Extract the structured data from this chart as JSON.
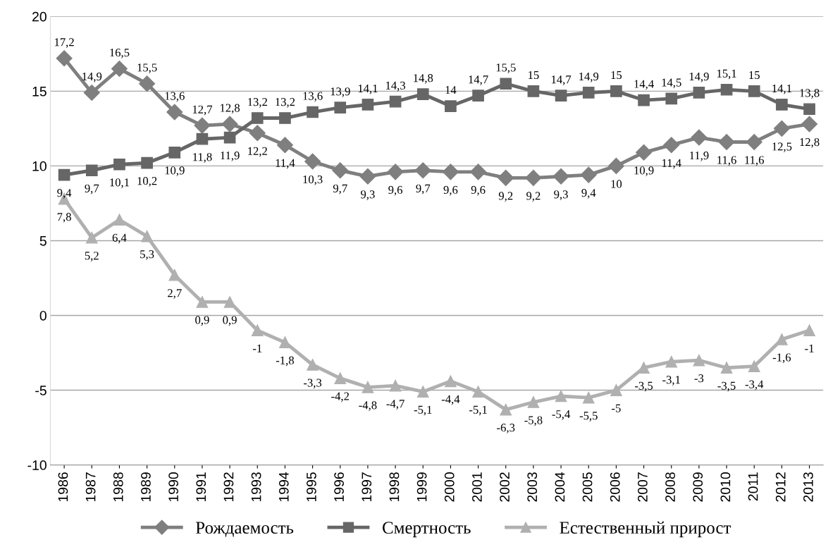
{
  "chart_data": {
    "type": "line",
    "categories": [
      "1986",
      "1987",
      "1988",
      "1989",
      "1990",
      "1991",
      "1992",
      "1993",
      "1994",
      "1995",
      "1996",
      "1997",
      "1998",
      "1999",
      "2000",
      "2001",
      "2002",
      "2003",
      "2004",
      "2005",
      "2006",
      "2007",
      "2008",
      "2009",
      "2010",
      "2011",
      "2012",
      "2013"
    ],
    "series": [
      {
        "name": "Рождаемость",
        "color": "#7f7f7f",
        "marker": "diamond",
        "values": [
          17.2,
          14.9,
          16.5,
          15.5,
          13.6,
          12.7,
          12.8,
          12.2,
          11.4,
          10.3,
          9.7,
          9.3,
          9.6,
          9.7,
          9.6,
          9.6,
          9.2,
          9.2,
          9.3,
          9.4,
          10,
          10.9,
          11.4,
          11.9,
          11.6,
          11.6,
          12.5,
          12.8
        ],
        "value_labels": [
          "17,2",
          "14,9",
          "16,5",
          "15,5",
          "13,6",
          "12,7",
          "12,8",
          "12,2",
          "11,4",
          "10,3",
          "9,7",
          "9,3",
          "9,6",
          "9,7",
          "9,6",
          "9,6",
          "9,2",
          "9,2",
          "9,3",
          "9,4",
          "10",
          "10,9",
          "11,4",
          "11,9",
          "11,6",
          "11,6",
          "12,5",
          "12,8"
        ]
      },
      {
        "name": "Смертность",
        "color": "#666666",
        "marker": "square",
        "values": [
          9.4,
          9.7,
          10.1,
          10.2,
          10.9,
          11.8,
          11.9,
          13.2,
          13.2,
          13.6,
          13.9,
          14.1,
          14.3,
          14.8,
          14,
          14.7,
          15.5,
          15,
          14.7,
          14.9,
          15,
          14.4,
          14.5,
          14.9,
          15.1,
          15,
          14.1,
          13.8
        ],
        "value_labels": [
          "9,4",
          "9,7",
          "10,1",
          "10,2",
          "10,9",
          "11,8",
          "11,9",
          "13,2",
          "13,2",
          "13,6",
          "13,9",
          "14,1",
          "14,3",
          "14,8",
          "14",
          "14,7",
          "15,5",
          "15",
          "14,7",
          "14,9",
          "15",
          "14,4",
          "14,5",
          "14,9",
          "15,1",
          "15",
          "14,1",
          "13,8"
        ]
      },
      {
        "name": "Естественный прирост",
        "color": "#b0b0b0",
        "marker": "triangle",
        "values": [
          7.8,
          5.2,
          6.4,
          5.3,
          2.7,
          0.9,
          0.9,
          -1,
          -1.8,
          -3.3,
          -4.2,
          -4.8,
          -4.7,
          -5.1,
          -4.4,
          -5.1,
          -6.3,
          -5.8,
          -5.4,
          -5.5,
          -5,
          -3.5,
          -3.1,
          -3,
          -3.5,
          -3.4,
          -1.6,
          -1
        ],
        "value_labels": [
          "7,8",
          "5,2",
          "6,4",
          "5,3",
          "2,7",
          "0,9",
          "0,9",
          "-1",
          "-1,8",
          "-3,3",
          "-4,2",
          "-4,8",
          "-4,7",
          "-5,1",
          "-4,4",
          "-5,1",
          "-6,3",
          "-5,8",
          "-5,4",
          "-5,5",
          "-5",
          "-3,5",
          "-3,1",
          "-3",
          "-3,5",
          "-3,4",
          "-1,6",
          "-1"
        ]
      }
    ],
    "ylim": [
      -10,
      20
    ],
    "yticks": [
      -10,
      -5,
      0,
      5,
      10,
      15,
      20
    ],
    "grid": "y",
    "legend": "bottom",
    "line_style": "solid"
  }
}
